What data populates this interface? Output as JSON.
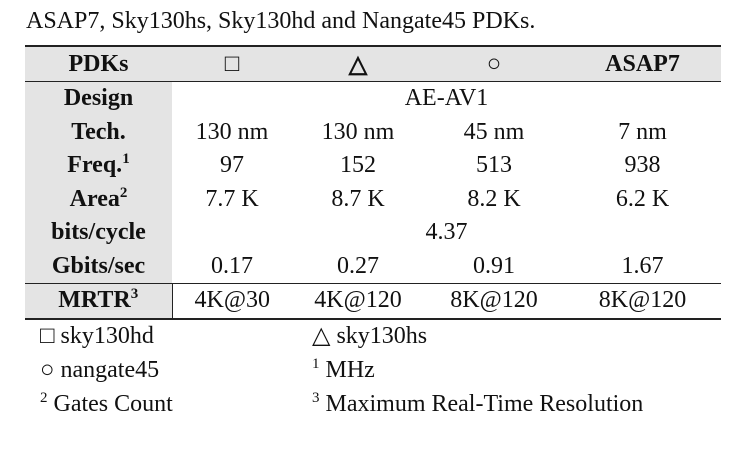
{
  "caption": "ASAP7, Sky130hs, Sky130hd and Nangate45 PDKs.",
  "table": {
    "header": [
      "PDKs",
      "□",
      "△",
      "○",
      "ASAP7"
    ],
    "rows": [
      {
        "label": "Design",
        "cells": [
          "AE-AV1"
        ]
      },
      {
        "label": "Tech.",
        "cells": [
          "130 nm",
          "130 nm",
          "45 nm",
          "7 nm"
        ]
      },
      {
        "label": "Freq.",
        "sup": "1",
        "cells": [
          "97",
          "152",
          "513",
          "938"
        ]
      },
      {
        "label": "Area",
        "sup": "2",
        "cells": [
          "7.7 K",
          "8.7 K",
          "8.2 K",
          "6.2 K"
        ]
      },
      {
        "label": "bits/cycle",
        "cells": [
          "4.37"
        ]
      },
      {
        "label": "Gbits/sec",
        "cells": [
          "0.17",
          "0.27",
          "0.91",
          "1.67"
        ]
      },
      {
        "label": "MRTR",
        "sup": "3",
        "cells": [
          "4K@30",
          "4K@120",
          "8K@120",
          "8K@120"
        ]
      }
    ]
  },
  "footnotes": [
    {
      "mark": "□",
      "text": "sky130hd"
    },
    {
      "mark": "△",
      "text": "sky130hs"
    },
    {
      "mark": "○",
      "text": "nangate45"
    },
    {
      "mark": "1",
      "text": "MHz"
    },
    {
      "mark": "2",
      "text": "Gates Count"
    },
    {
      "mark": "3",
      "text": "Maximum Real-Time Resolution"
    }
  ]
}
